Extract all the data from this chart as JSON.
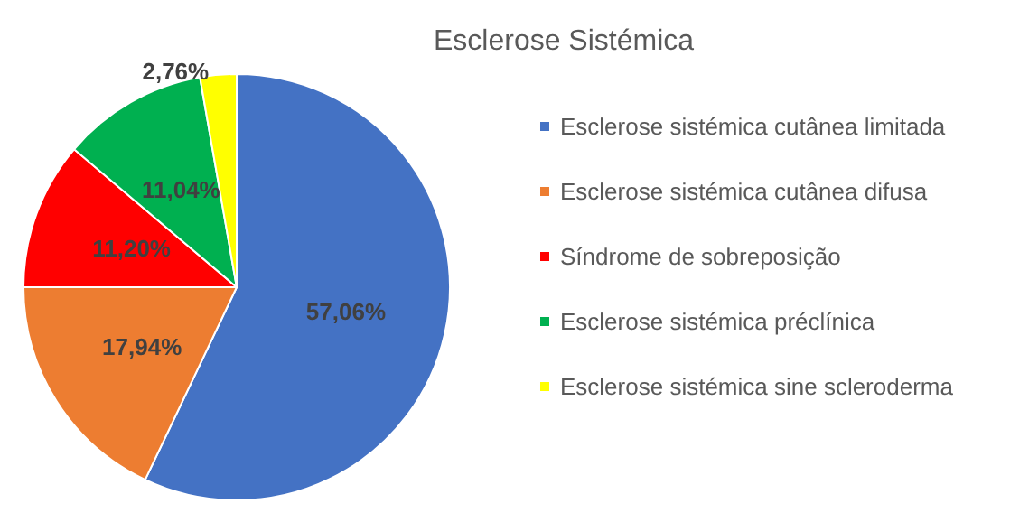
{
  "chart_data": {
    "type": "pie",
    "title": "Esclerose Sistémica",
    "categories": [
      "Esclerose sistémica cutânea limitada",
      "Esclerose sistémica cutânea difusa",
      "Síndrome de sobreposição",
      "Esclerose sistémica préclínica",
      "Esclerose sistémica sine scleroderma"
    ],
    "values": [
      57.06,
      17.94,
      11.2,
      11.04,
      2.76
    ],
    "value_labels": [
      "57,06%",
      "17,94%",
      "11,20%",
      "11,04%",
      "2,76%"
    ],
    "colors": [
      "#4472c4",
      "#ed7d31",
      "#ff0000",
      "#00b050",
      "#ffff00"
    ],
    "legend": "right"
  }
}
